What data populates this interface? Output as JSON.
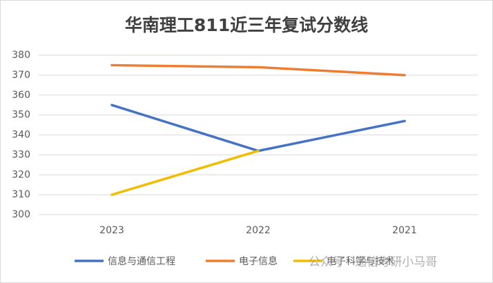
{
  "chart_data": {
    "type": "line",
    "title": "华南理工811近三年复试分数线",
    "categories": [
      "2023",
      "2022",
      "2021"
    ],
    "series": [
      {
        "name": "信息与通信工程",
        "color": "#4472c4",
        "values": [
          355,
          332,
          347
        ]
      },
      {
        "name": "电子信息",
        "color": "#ed7d31",
        "values": [
          375,
          374,
          370
        ]
      },
      {
        "name": "电子科学与技术",
        "color": "#f2bc00",
        "values": [
          310,
          332,
          null
        ]
      }
    ],
    "ylim": [
      300,
      380
    ],
    "yticks": [
      300,
      310,
      320,
      330,
      340,
      350,
      360,
      370,
      380
    ],
    "grid": true,
    "legend": "bottom",
    "watermark": "公众号 · 通信考研小马哥"
  }
}
